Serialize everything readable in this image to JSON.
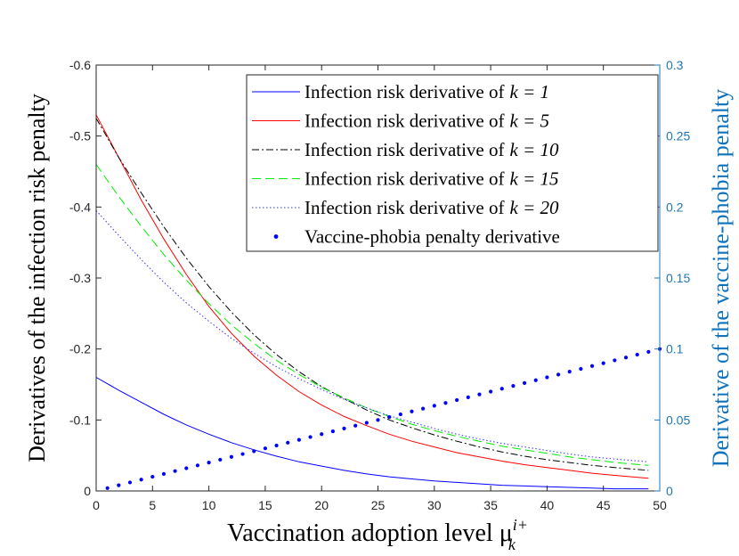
{
  "chart_data": {
    "type": "line",
    "xlabel": "Vaccination adoption level μ",
    "xlabel_sub": "k",
    "xlabel_sup": "i+",
    "ylabel_left": "Derivatives of the infection risk penalty",
    "ylabel_right": "Derivative of the vaccine-phobia penalty",
    "xlim": [
      0,
      50
    ],
    "ylim_left": [
      0,
      -0.6
    ],
    "ylim_right": [
      0,
      0.3
    ],
    "x_ticks": [
      "0",
      "5",
      "10",
      "15",
      "20",
      "25",
      "30",
      "35",
      "40",
      "45",
      "50"
    ],
    "y_left_ticks": [
      "0",
      "-0.1",
      "-0.2",
      "-0.3",
      "-0.4",
      "-0.5",
      "-0.6"
    ],
    "y_right_ticks": [
      "0",
      "0.05",
      "0.1",
      "0.15",
      "0.2",
      "0.25",
      "0.3"
    ],
    "series": [
      {
        "name": "Infection risk derivative of",
        "k_label": "k = 1",
        "color": "#0000ff",
        "dash": "solid",
        "axis": "left",
        "x": [
          0,
          2,
          4,
          6,
          8,
          10,
          12,
          14,
          16,
          18,
          20,
          22,
          24,
          26,
          28,
          30,
          32,
          34,
          36,
          38,
          40,
          42,
          44,
          46,
          49
        ],
        "y": [
          -0.16,
          -0.142,
          -0.125,
          -0.108,
          -0.093,
          -0.08,
          -0.068,
          -0.058,
          -0.049,
          -0.041,
          -0.035,
          -0.029,
          -0.024,
          -0.02,
          -0.017,
          -0.014,
          -0.012,
          -0.01,
          -0.008,
          -0.007,
          -0.006,
          -0.005,
          -0.004,
          -0.003,
          -0.003
        ]
      },
      {
        "name": "Infection risk derivative of",
        "k_label": "k = 5",
        "color": "#ff0000",
        "dash": "solid",
        "axis": "left",
        "x": [
          0,
          2,
          4,
          6,
          8,
          10,
          12,
          14,
          16,
          18,
          20,
          22,
          24,
          26,
          28,
          30,
          32,
          34,
          36,
          38,
          40,
          42,
          44,
          46,
          49
        ],
        "y": [
          -0.53,
          -0.47,
          -0.41,
          -0.355,
          -0.305,
          -0.26,
          -0.222,
          -0.19,
          -0.163,
          -0.14,
          -0.121,
          -0.105,
          -0.092,
          -0.08,
          -0.07,
          -0.062,
          -0.054,
          -0.048,
          -0.042,
          -0.037,
          -0.033,
          -0.029,
          -0.025,
          -0.022,
          -0.018
        ]
      },
      {
        "name": "Infection risk derivative of",
        "k_label": "k = 10",
        "color": "#000000",
        "dash": "dashdot",
        "axis": "left",
        "x": [
          0,
          2,
          4,
          6,
          8,
          10,
          12,
          14,
          16,
          18,
          20,
          22,
          24,
          26,
          28,
          30,
          32,
          34,
          36,
          38,
          40,
          42,
          44,
          46,
          49
        ],
        "y": [
          -0.525,
          -0.47,
          -0.42,
          -0.372,
          -0.328,
          -0.288,
          -0.252,
          -0.22,
          -0.192,
          -0.168,
          -0.147,
          -0.13,
          -0.114,
          -0.1,
          -0.089,
          -0.079,
          -0.07,
          -0.062,
          -0.055,
          -0.049,
          -0.044,
          -0.04,
          -0.036,
          -0.033,
          -0.029
        ]
      },
      {
        "name": "Infection risk derivative of",
        "k_label": "k = 15",
        "color": "#00ee00",
        "dash": "dashed",
        "axis": "left",
        "x": [
          0,
          2,
          4,
          6,
          8,
          10,
          12,
          14,
          16,
          18,
          20,
          22,
          24,
          26,
          28,
          30,
          32,
          34,
          36,
          38,
          40,
          42,
          44,
          46,
          49
        ],
        "y": [
          -0.46,
          -0.415,
          -0.373,
          -0.333,
          -0.297,
          -0.264,
          -0.234,
          -0.208,
          -0.184,
          -0.164,
          -0.146,
          -0.131,
          -0.117,
          -0.105,
          -0.094,
          -0.085,
          -0.077,
          -0.07,
          -0.063,
          -0.058,
          -0.053,
          -0.048,
          -0.044,
          -0.04,
          -0.036
        ]
      },
      {
        "name": "Infection risk derivative of",
        "k_label": "k = 20",
        "color": "#3333ff",
        "dash": "dotted",
        "axis": "left",
        "x": [
          0,
          2,
          4,
          6,
          8,
          10,
          12,
          14,
          16,
          18,
          20,
          22,
          24,
          26,
          28,
          30,
          32,
          34,
          36,
          38,
          40,
          42,
          44,
          46,
          49
        ],
        "y": [
          -0.395,
          -0.36,
          -0.326,
          -0.294,
          -0.265,
          -0.239,
          -0.215,
          -0.194,
          -0.175,
          -0.158,
          -0.143,
          -0.129,
          -0.117,
          -0.106,
          -0.097,
          -0.088,
          -0.08,
          -0.073,
          -0.067,
          -0.062,
          -0.057,
          -0.052,
          -0.048,
          -0.045,
          -0.041
        ]
      },
      {
        "name": "Vaccine-phobia penalty derivative",
        "k_label": "",
        "color": "#0000ff",
        "dash": "points",
        "axis": "right",
        "x": [
          1,
          2,
          3,
          4,
          5,
          6,
          7,
          8,
          9,
          10,
          11,
          12,
          13,
          14,
          15,
          16,
          17,
          18,
          19,
          20,
          21,
          22,
          23,
          24,
          25,
          26,
          27,
          28,
          29,
          30,
          31,
          32,
          33,
          34,
          35,
          36,
          37,
          38,
          39,
          40,
          41,
          42,
          43,
          44,
          45,
          46,
          47,
          48,
          49,
          50
        ],
        "y": [
          0.002,
          0.004,
          0.006,
          0.008,
          0.01,
          0.012,
          0.014,
          0.016,
          0.018,
          0.02,
          0.022,
          0.024,
          0.026,
          0.028,
          0.03,
          0.032,
          0.034,
          0.036,
          0.038,
          0.04,
          0.042,
          0.044,
          0.046,
          0.048,
          0.05,
          0.052,
          0.054,
          0.056,
          0.058,
          0.06,
          0.062,
          0.064,
          0.066,
          0.068,
          0.07,
          0.072,
          0.074,
          0.076,
          0.078,
          0.08,
          0.082,
          0.084,
          0.086,
          0.088,
          0.09,
          0.092,
          0.094,
          0.096,
          0.098,
          0.1
        ]
      }
    ]
  }
}
